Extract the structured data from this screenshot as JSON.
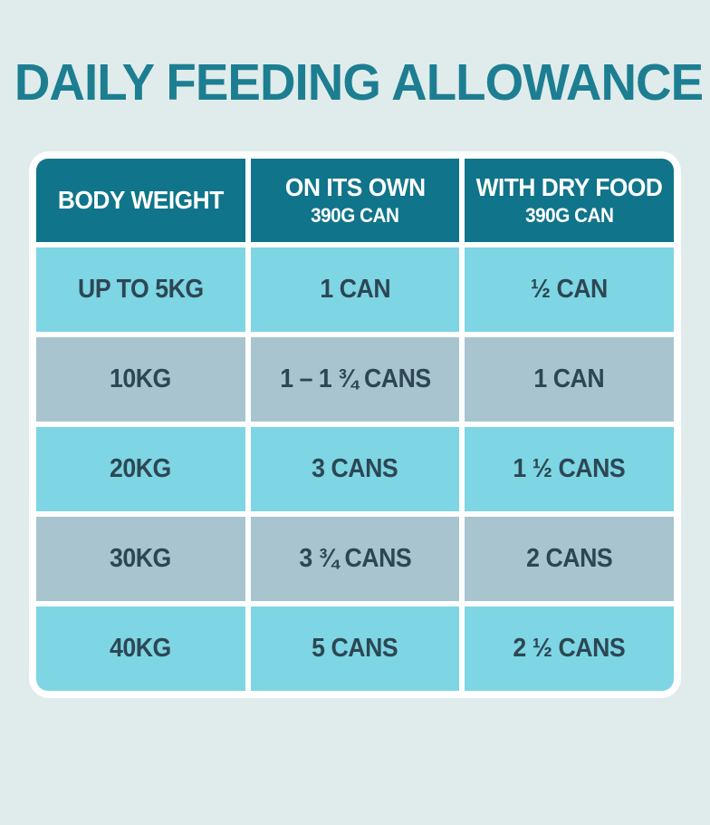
{
  "chart_data": {
    "type": "table",
    "title": "DAILY FEEDING ALLOWANCE",
    "columns": [
      {
        "label": "BODY WEIGHT",
        "sublabel": ""
      },
      {
        "label": "ON ITS OWN",
        "sublabel": "390G CAN"
      },
      {
        "label": "WITH DRY FOOD",
        "sublabel": "390G CAN"
      }
    ],
    "rows": [
      [
        "UP TO 5KG",
        "1 CAN",
        "½ CAN"
      ],
      [
        "10KG",
        "1 – 1 ¾ CANS",
        "1 CAN"
      ],
      [
        "20KG",
        "3 CANS",
        "1 ½ CANS"
      ],
      [
        "30KG",
        "3 ¾ CANS",
        "2 CANS"
      ],
      [
        "40KG",
        "5 CANS",
        "2 ½ CANS"
      ]
    ],
    "layout_hints": {
      "row_striping": [
        "cyan",
        "gray",
        "cyan",
        "gray",
        "cyan"
      ],
      "header_style": "dark-teal"
    }
  },
  "colors": {
    "background": "#dfeceb",
    "title_teal": "#1d7e92",
    "header_teal": "#10748a",
    "row_cyan": "#7ed5e4",
    "row_gray": "#a7c4cf",
    "cell_text": "#2c4753",
    "table_border": "#ffffff"
  }
}
